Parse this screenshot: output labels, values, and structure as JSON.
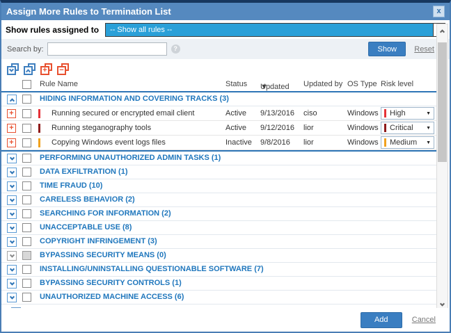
{
  "dialog": {
    "title": "Assign More Rules to Termination List"
  },
  "icons": {
    "close": "x",
    "help": "?",
    "sort_desc": "▼",
    "dropdown_arrow": "▼"
  },
  "filter": {
    "label": "Show rules assigned to",
    "selected": "-- Show all rules --"
  },
  "search": {
    "label": "Search by:",
    "value": "",
    "show_button": "Show",
    "reset_link": "Reset"
  },
  "toolbar": {
    "icon_names": [
      "expand-all-categories-icon",
      "collapse-all-categories-icon",
      "expand-all-rules-icon",
      "collapse-all-rules-icon"
    ]
  },
  "table": {
    "columns": {
      "rule_name": "Rule Name",
      "status": "Status",
      "updated_on": "Updated on",
      "updated_by": "Updated by",
      "os_type": "OS Type",
      "risk_level": "Risk level"
    },
    "sorted_by": "updated_on",
    "sort_direction": "desc"
  },
  "groups": [
    {
      "name": "HIDING INFORMATION AND COVERING TRACKS (3)",
      "expanded": true,
      "enabled": true,
      "rules": [
        {
          "name": "Running secured or encrypted email client",
          "status": "Active",
          "updated_on": "9/13/2016",
          "updated_by": "ciso",
          "os_type": "Windows",
          "risk_level": "High",
          "risk_color": "#e53238"
        },
        {
          "name": "Running steganography tools",
          "status": "Active",
          "updated_on": "9/12/2016",
          "updated_by": "lior",
          "os_type": "Windows",
          "risk_level": "Critical",
          "risk_color": "#8f1b1b"
        },
        {
          "name": "Copying Windows event logs files",
          "status": "Inactive",
          "updated_on": "9/8/2016",
          "updated_by": "lior",
          "os_type": "Windows",
          "risk_level": "Medium",
          "risk_color": "#f0a11e"
        }
      ]
    },
    {
      "name": "PERFORMING UNAUTHORIZED ADMIN TASKS (1)",
      "expanded": false,
      "enabled": true,
      "rules": []
    },
    {
      "name": "DATA EXFILTRATION (1)",
      "expanded": false,
      "enabled": true,
      "rules": []
    },
    {
      "name": "TIME FRAUD (10)",
      "expanded": false,
      "enabled": true,
      "rules": []
    },
    {
      "name": "CARELESS BEHAVIOR (2)",
      "expanded": false,
      "enabled": true,
      "rules": []
    },
    {
      "name": "SEARCHING FOR INFORMATION (2)",
      "expanded": false,
      "enabled": true,
      "rules": []
    },
    {
      "name": "UNACCEPTABLE USE (8)",
      "expanded": false,
      "enabled": true,
      "rules": []
    },
    {
      "name": "COPYRIGHT INFRINGEMENT (3)",
      "expanded": false,
      "enabled": true,
      "rules": []
    },
    {
      "name": "BYPASSING SECURITY MEANS (0)",
      "expanded": false,
      "enabled": false,
      "rules": []
    },
    {
      "name": "INSTALLING/UNINSTALLING QUESTIONABLE SOFTWARE (7)",
      "expanded": false,
      "enabled": true,
      "rules": []
    },
    {
      "name": "BYPASSING SECURITY CONTROLS (1)",
      "expanded": false,
      "enabled": true,
      "rules": []
    },
    {
      "name": "UNAUTHORIZED MACHINE ACCESS (6)",
      "expanded": false,
      "enabled": true,
      "rules": []
    }
  ],
  "footer": {
    "add_button": "Add",
    "cancel_link": "Cancel"
  },
  "colors": {
    "accent": "#2e75b6",
    "titlebar": "#5589bf",
    "select_highlight": "#2aa0d8",
    "risk_high": "#e53238",
    "risk_critical": "#8f1b1b",
    "risk_medium": "#f0a11e"
  }
}
